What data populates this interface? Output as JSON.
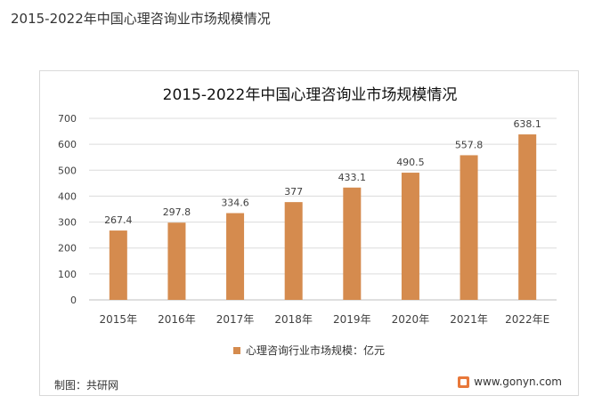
{
  "page": {
    "title": "2015-2022年中国心理咨询业市场规模情况"
  },
  "colors": {
    "bar": "#d58b4e",
    "grid": "#dcdcdc",
    "axis": "#bfbfbf",
    "text": "#404040"
  },
  "footer": {
    "source": "制图：共研网",
    "site": "www.gonyn.com",
    "logo": "gonyn-logo-icon"
  },
  "chart_data": {
    "type": "bar",
    "title": "2015-2022年中国心理咨询业市场规模情况",
    "categories": [
      "2015年",
      "2016年",
      "2017年",
      "2018年",
      "2019年",
      "2020年",
      "2021年",
      "2022年E"
    ],
    "series": [
      {
        "name": "心理咨询行业市场规模：亿元",
        "values": [
          267.4,
          297.8,
          334.6,
          377,
          433.1,
          490.5,
          557.8,
          638.1
        ]
      }
    ],
    "ylim": [
      0,
      700
    ],
    "yticks": [
      0,
      100,
      200,
      300,
      400,
      500,
      600,
      700
    ],
    "grid": true,
    "legend": "bottom"
  }
}
